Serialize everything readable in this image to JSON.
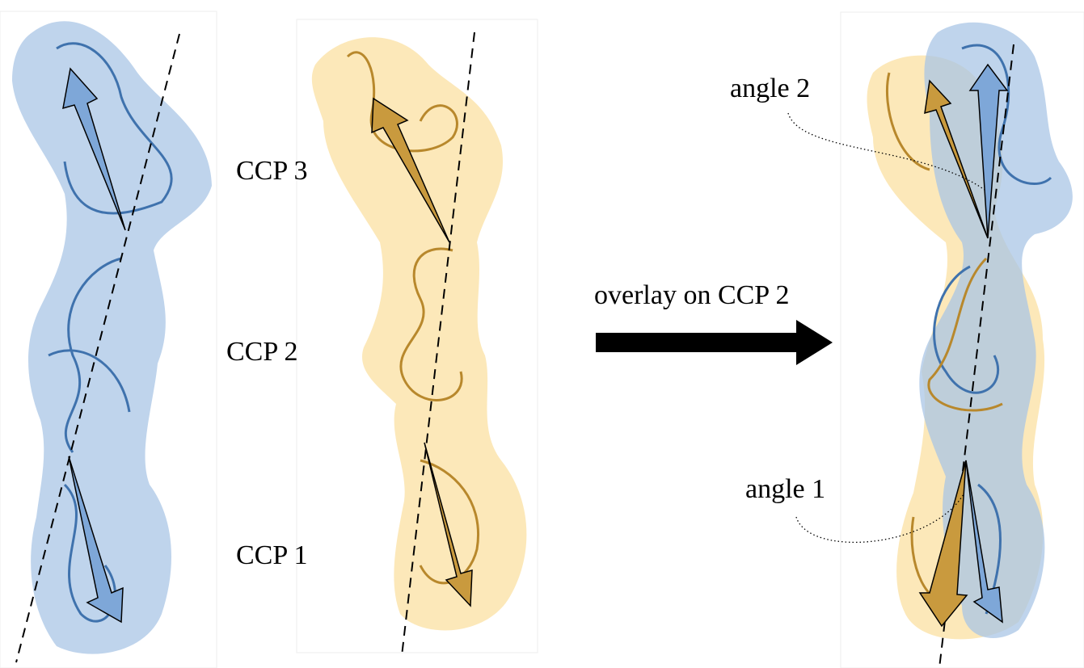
{
  "labels": {
    "ccp3": "CCP 3",
    "ccp2": "CCP 2",
    "ccp1": "CCP 1"
  },
  "overlay": "overlay on CCP 2",
  "angles": {
    "angle2": "angle 2",
    "angle1": "angle 1"
  }
}
